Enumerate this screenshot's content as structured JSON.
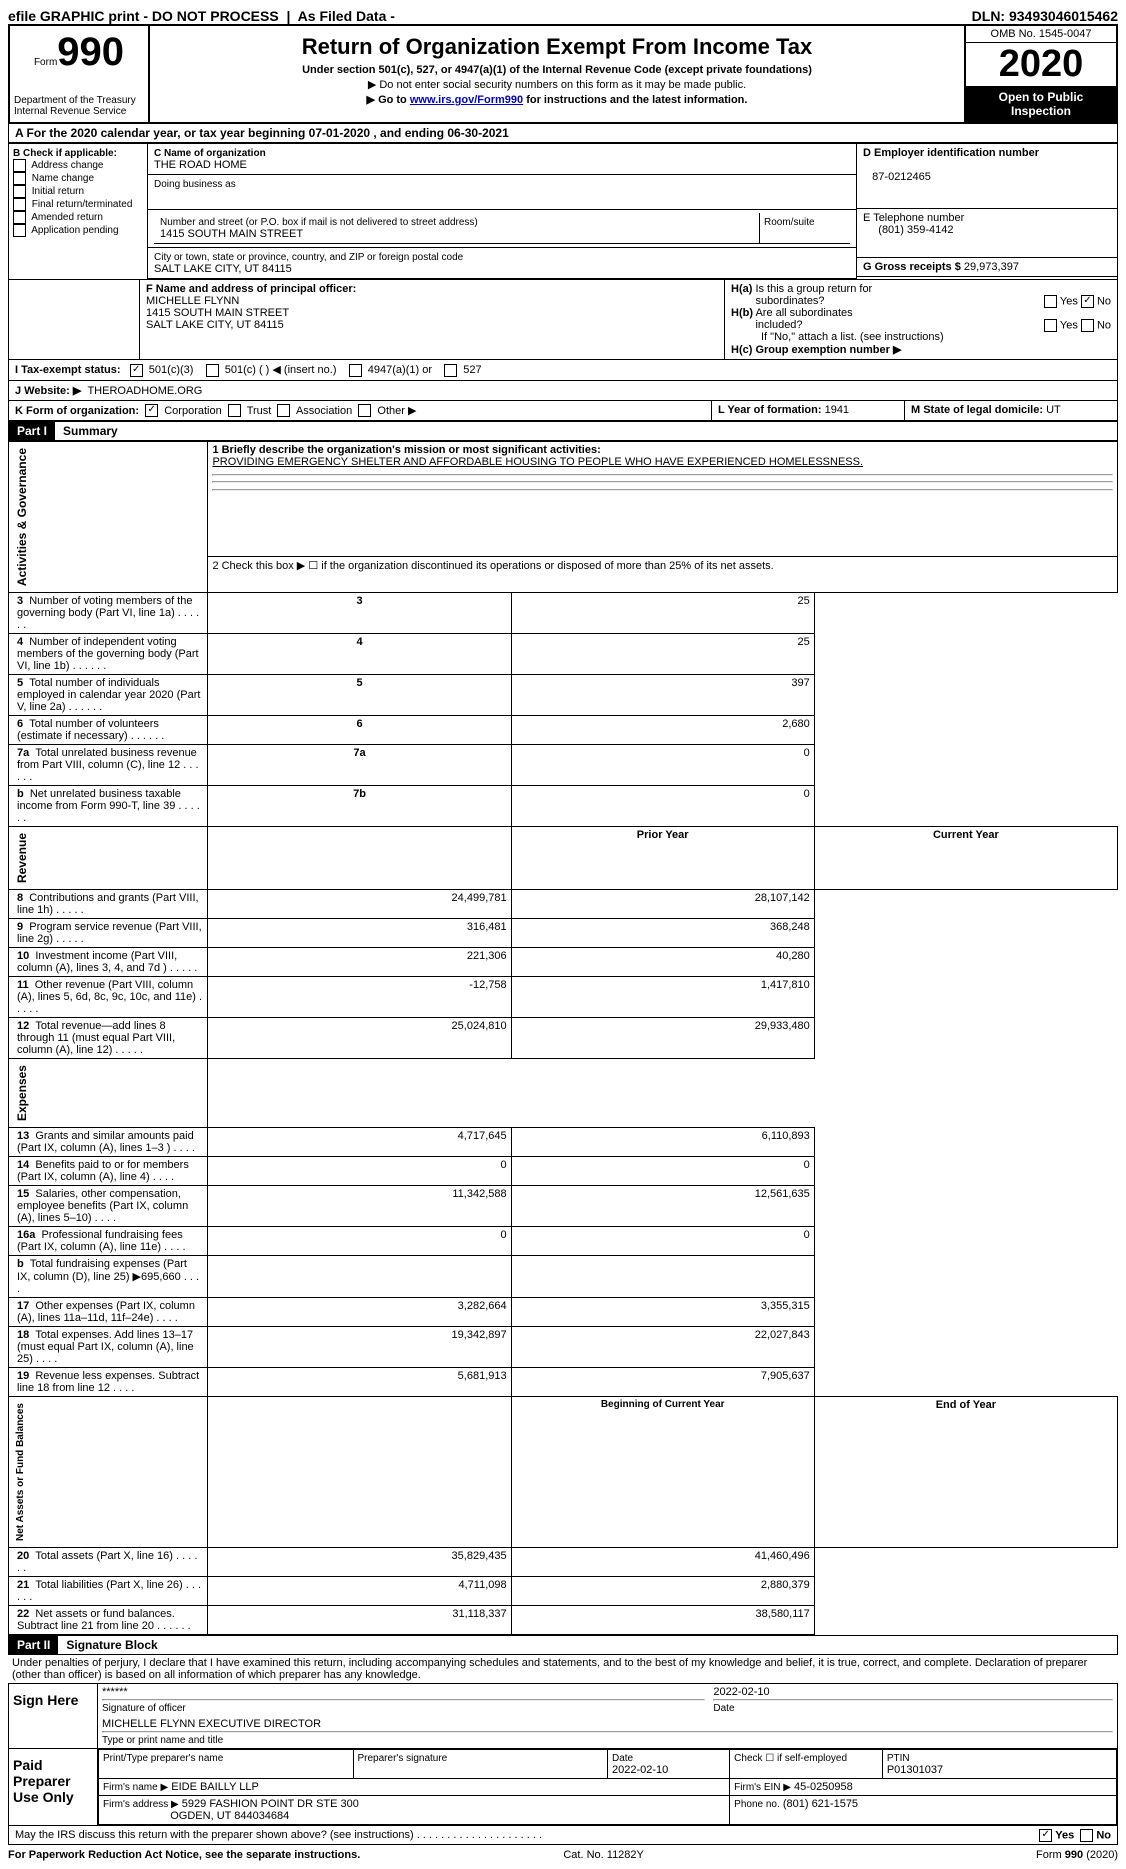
{
  "topbar": {
    "efile": "efile GRAPHIC print - DO NOT PROCESS",
    "asfiled": "As Filed Data -",
    "dln_label": "DLN:",
    "dln": "93493046015462"
  },
  "header": {
    "form_prefix": "Form",
    "form_num": "990",
    "dept": "Department of the Treasury\nInternal Revenue Service",
    "title": "Return of Organization Exempt From Income Tax",
    "subtitle1": "Under section 501(c), 527, or 4947(a)(1) of the Internal Revenue Code (except private foundations)",
    "subtitle2": "▶ Do not enter social security numbers on this form as it may be made public.",
    "subtitle3_pre": "▶ Go to ",
    "subtitle3_link": "www.irs.gov/Form990",
    "subtitle3_post": " for instructions and the latest information.",
    "omb": "OMB No. 1545-0047",
    "year": "2020",
    "open": "Open to Public Inspection"
  },
  "lineA": "A   For the 2020 calendar year, or tax year beginning 07-01-2020    , and ending 06-30-2021",
  "sectionB": {
    "title": "B Check if applicable:",
    "opts": [
      "Address change",
      "Name change",
      "Initial return",
      "Final return/terminated",
      "Amended return",
      "Application pending"
    ]
  },
  "sectionC": {
    "name_label": "C Name of organization",
    "name": "THE ROAD HOME",
    "dba_label": "Doing business as",
    "dba": "",
    "street_label": "Number and street (or P.O. box if mail is not delivered to street address)",
    "street": "1415 SOUTH MAIN STREET",
    "room_label": "Room/suite",
    "city_label": "City or town, state or province, country, and ZIP or foreign postal code",
    "city": "SALT LAKE CITY, UT  84115"
  },
  "sectionD": {
    "label": "D Employer identification number",
    "ein": "87-0212465",
    "phone_label": "E Telephone number",
    "phone": "(801) 359-4142",
    "gross_label": "G Gross receipts $",
    "gross": "29,973,397"
  },
  "sectionF": {
    "label": "F  Name and address of principal officer:",
    "name": "MICHELLE FLYNN",
    "street": "1415 SOUTH MAIN STREET",
    "city": "SALT LAKE CITY, UT  84115"
  },
  "sectionH": {
    "a_label": "H(a) Is this a group return for subordinates?",
    "a_yes": "Yes",
    "a_no": "No",
    "b_label": "H(b) Are all subordinates included?",
    "b_yes": "Yes",
    "b_no": "No",
    "b_note": "If \"No,\" attach a list. (see instructions)",
    "c_label": "H(c) Group exemption number ▶"
  },
  "sectionI": {
    "label": "I   Tax-exempt status:",
    "opt1": "501(c)(3)",
    "opt2": "501(c) (   ) ◀ (insert no.)",
    "opt3": "4947(a)(1) or",
    "opt4": "527"
  },
  "sectionJ": {
    "label": "J   Website: ▶",
    "value": "THEROADHOME.ORG"
  },
  "sectionK": {
    "label": "K Form of organization:",
    "opt1": "Corporation",
    "opt2": "Trust",
    "opt3": "Association",
    "opt4": "Other ▶"
  },
  "sectionL": {
    "label": "L Year of formation:",
    "value": "1941"
  },
  "sectionM": {
    "label": "M State of legal domicile:",
    "value": "UT"
  },
  "part1": {
    "hdr": "Part I",
    "title": "Summary",
    "line1_label": "1 Briefly describe the organization's mission or most significant activities:",
    "line1_value": "PROVIDING EMERGENCY SHELTER AND AFFORDABLE HOUSING TO PEOPLE WHO HAVE EXPERIENCED HOMELESSNESS.",
    "line2": "2   Check this box ▶ ☐ if the organization discontinued its operations or disposed of more than 25% of its net assets.",
    "governance_rows": [
      {
        "n": "3",
        "label": "Number of voting members of the governing body (Part VI, line 1a)",
        "num": "3",
        "val": "25"
      },
      {
        "n": "4",
        "label": "Number of independent voting members of the governing body (Part VI, line 1b)",
        "num": "4",
        "val": "25"
      },
      {
        "n": "5",
        "label": "Total number of individuals employed in calendar year 2020 (Part V, line 2a)",
        "num": "5",
        "val": "397"
      },
      {
        "n": "6",
        "label": "Total number of volunteers (estimate if necessary)",
        "num": "6",
        "val": "2,680"
      },
      {
        "n": "7a",
        "label": "Total unrelated business revenue from Part VIII, column (C), line 12",
        "num": "7a",
        "val": "0"
      },
      {
        "n": "b",
        "label": "Net unrelated business taxable income from Form 990-T, line 39",
        "num": "7b",
        "val": "0"
      }
    ],
    "prior_label": "Prior Year",
    "current_label": "Current Year",
    "revenue_label": "Revenue",
    "expenses_label": "Expenses",
    "netassets_label": "Net Assets or Fund Balances",
    "governance_label": "Activities & Governance",
    "revenue_rows": [
      {
        "n": "8",
        "label": "Contributions and grants (Part VIII, line 1h)",
        "prior": "24,499,781",
        "curr": "28,107,142"
      },
      {
        "n": "9",
        "label": "Program service revenue (Part VIII, line 2g)",
        "prior": "316,481",
        "curr": "368,248"
      },
      {
        "n": "10",
        "label": "Investment income (Part VIII, column (A), lines 3, 4, and 7d )",
        "prior": "221,306",
        "curr": "40,280"
      },
      {
        "n": "11",
        "label": "Other revenue (Part VIII, column (A), lines 5, 6d, 8c, 9c, 10c, and 11e)",
        "prior": "-12,758",
        "curr": "1,417,810"
      },
      {
        "n": "12",
        "label": "Total revenue—add lines 8 through 11 (must equal Part VIII, column (A), line 12)",
        "prior": "25,024,810",
        "curr": "29,933,480"
      }
    ],
    "expense_rows": [
      {
        "n": "13",
        "label": "Grants and similar amounts paid (Part IX, column (A), lines 1–3 )",
        "prior": "4,717,645",
        "curr": "6,110,893"
      },
      {
        "n": "14",
        "label": "Benefits paid to or for members (Part IX, column (A), line 4)",
        "prior": "0",
        "curr": "0"
      },
      {
        "n": "15",
        "label": "Salaries, other compensation, employee benefits (Part IX, column (A), lines 5–10)",
        "prior": "11,342,588",
        "curr": "12,561,635"
      },
      {
        "n": "16a",
        "label": "Professional fundraising fees (Part IX, column (A), line 11e)",
        "prior": "0",
        "curr": "0"
      },
      {
        "n": "b",
        "label": "Total fundraising expenses (Part IX, column (D), line 25) ▶695,660",
        "prior": "",
        "curr": ""
      },
      {
        "n": "17",
        "label": "Other expenses (Part IX, column (A), lines 11a–11d, 11f–24e)",
        "prior": "3,282,664",
        "curr": "3,355,315"
      },
      {
        "n": "18",
        "label": "Total expenses. Add lines 13–17 (must equal Part IX, column (A), line 25)",
        "prior": "19,342,897",
        "curr": "22,027,843"
      },
      {
        "n": "19",
        "label": "Revenue less expenses. Subtract line 18 from line 12",
        "prior": "5,681,913",
        "curr": "7,905,637"
      }
    ],
    "begin_label": "Beginning of Current Year",
    "end_label": "End of Year",
    "netasset_rows": [
      {
        "n": "20",
        "label": "Total assets (Part X, line 16)",
        "prior": "35,829,435",
        "curr": "41,460,496"
      },
      {
        "n": "21",
        "label": "Total liabilities (Part X, line 26)",
        "prior": "4,711,098",
        "curr": "2,880,379"
      },
      {
        "n": "22",
        "label": "Net assets or fund balances. Subtract line 21 from line 20",
        "prior": "31,118,337",
        "curr": "38,580,117"
      }
    ]
  },
  "part2": {
    "hdr": "Part II",
    "title": "Signature Block",
    "declaration": "Under penalties of perjury, I declare that I have examined this return, including accompanying schedules and statements, and to the best of my knowledge and belief, it is true, correct, and complete. Declaration of preparer (other than officer) is based on all information of which preparer has any knowledge.",
    "sign_here": "Sign Here",
    "sig_stars": "******",
    "sig_officer_label": "Signature of officer",
    "sig_date": "2022-02-10",
    "sig_date_label": "Date",
    "officer_name": "MICHELLE FLYNN  EXECUTIVE DIRECTOR",
    "officer_name_label": "Type or print name and title",
    "paid": "Paid Preparer Use Only",
    "prep_name_label": "Print/Type preparer's name",
    "prep_sig_label": "Preparer's signature",
    "prep_date_label": "Date",
    "prep_date": "2022-02-10",
    "prep_check_label": "Check ☐ if self-employed",
    "ptin_label": "PTIN",
    "ptin": "P01301037",
    "firm_name_label": "Firm's name    ▶",
    "firm_name": "EIDE BAILLY LLP",
    "firm_ein_label": "Firm's EIN ▶",
    "firm_ein": "45-0250958",
    "firm_addr_label": "Firm's address ▶",
    "firm_addr": "5929 FASHION POINT DR STE 300",
    "firm_city": "OGDEN, UT  844034684",
    "firm_phone_label": "Phone no.",
    "firm_phone": "(801) 621-1575",
    "discuss": "May the IRS discuss this return with the preparer shown above? (see instructions)",
    "discuss_yes": "Yes",
    "discuss_no": "No"
  },
  "footer": {
    "paperwork": "For Paperwork Reduction Act Notice, see the separate instructions.",
    "cat": "Cat. No. 11282Y",
    "form": "Form 990 (2020)"
  }
}
